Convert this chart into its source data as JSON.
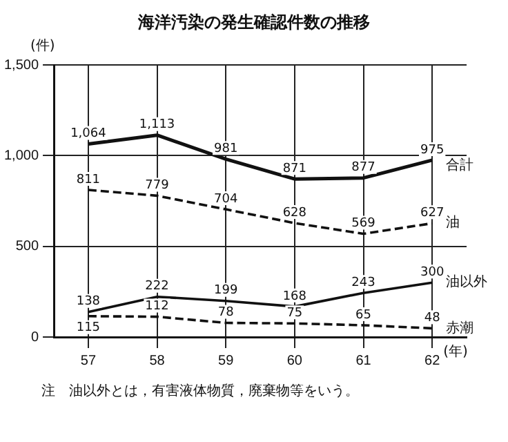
{
  "chart_data": {
    "type": "line",
    "title": "海洋汚染の発生確認件数の推移",
    "ylabel": "(件)",
    "xlabel": "(年)",
    "categories": [
      "57",
      "58",
      "59",
      "60",
      "61",
      "62"
    ],
    "series": [
      {
        "name": "合計",
        "color": "#111111",
        "line_style": "solid",
        "values": [
          1064,
          1113,
          981,
          871,
          877,
          975
        ],
        "value_labels": [
          "1,064",
          "1,113",
          "981",
          "871",
          "877",
          "975"
        ]
      },
      {
        "name": "油",
        "color": "#111111",
        "line_style": "dashed",
        "values": [
          811,
          779,
          704,
          628,
          569,
          627
        ],
        "value_labels": [
          "811",
          "779",
          "704",
          "628",
          "569",
          "627"
        ]
      },
      {
        "name": "油以外",
        "color": "#111111",
        "line_style": "solid",
        "values": [
          138,
          222,
          199,
          168,
          243,
          300
        ],
        "value_labels": [
          "138",
          "222",
          "199",
          "168",
          "243",
          "300"
        ]
      },
      {
        "name": "赤潮",
        "color": "#111111",
        "line_style": "dashed",
        "values": [
          115,
          112,
          78,
          75,
          65,
          48
        ],
        "value_labels": [
          "115",
          "112",
          "78",
          "75",
          "65",
          "48"
        ]
      }
    ],
    "ylim": [
      0,
      1500
    ],
    "yticks": [
      0,
      500,
      {
        "value": 1000,
        "label": "1,000"
      },
      {
        "value": 1500,
        "label": "1,500"
      }
    ],
    "grid": true,
    "legend": false,
    "marker": "none",
    "annotations": [
      "注　油以外とは，有害液体物質，廃棄物等をいう。"
    ]
  }
}
